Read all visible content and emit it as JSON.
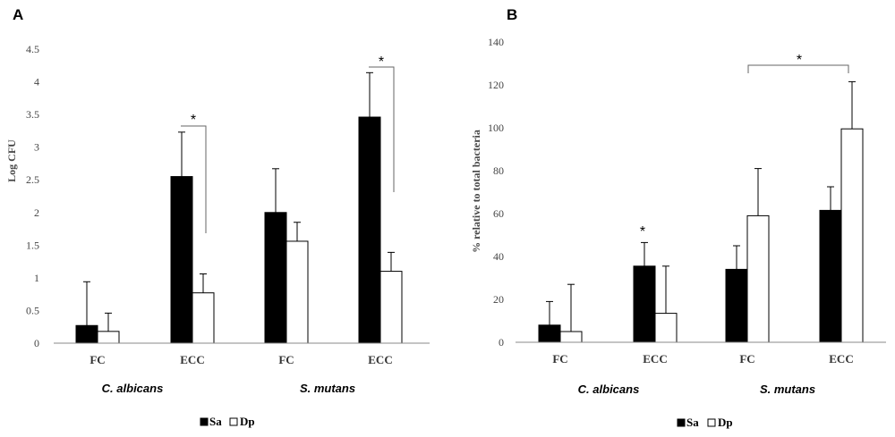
{
  "chart_data": [
    {
      "panel": "A",
      "type": "bar",
      "ylabel": "Log CFU",
      "ylim": [
        0,
        4.5
      ],
      "yticks": [
        "0",
        "0.5",
        "1",
        "1.5",
        "2",
        "2.5",
        "3",
        "3.5",
        "4",
        "4.5"
      ],
      "categories": [
        "FC",
        "ECC",
        "FC",
        "ECC"
      ],
      "groups": [
        "C. albicans",
        "S. mutans"
      ],
      "series": [
        {
          "name": "Sa",
          "fill": "#000000",
          "values": [
            0.27,
            2.55,
            2.0,
            3.46
          ],
          "errors": [
            0.67,
            0.68,
            0.67,
            0.68
          ]
        },
        {
          "name": "Dp",
          "fill": "#ffffff",
          "values": [
            0.18,
            0.77,
            1.56,
            1.1
          ],
          "errors": [
            0.28,
            0.29,
            0.29,
            0.29
          ]
        }
      ],
      "annotations": [
        {
          "text": "*"
        },
        {
          "text": "*"
        }
      ],
      "legend": [
        "Sa",
        "Dp"
      ]
    },
    {
      "panel": "B",
      "type": "bar",
      "ylabel": "% relative to total bacteria",
      "ylim": [
        0,
        140
      ],
      "yticks": [
        "0",
        "20",
        "40",
        "60",
        "80",
        "100",
        "120",
        "140"
      ],
      "categories": [
        "FC",
        "ECC",
        "FC",
        "ECC"
      ],
      "groups": [
        "C. albicans",
        "S. mutans"
      ],
      "series": [
        {
          "name": "Sa",
          "fill": "#000000",
          "values": [
            8,
            35.5,
            34,
            61.5
          ],
          "errors": [
            11,
            11,
            11,
            11
          ]
        },
        {
          "name": "Dp",
          "fill": "#ffffff",
          "values": [
            5,
            13.5,
            59,
            99.5
          ],
          "errors": [
            22,
            22,
            22,
            22
          ]
        }
      ],
      "annotations": [
        {
          "text": "*"
        },
        {
          "text": "*"
        }
      ],
      "legend": [
        "Sa",
        "Dp"
      ]
    }
  ]
}
